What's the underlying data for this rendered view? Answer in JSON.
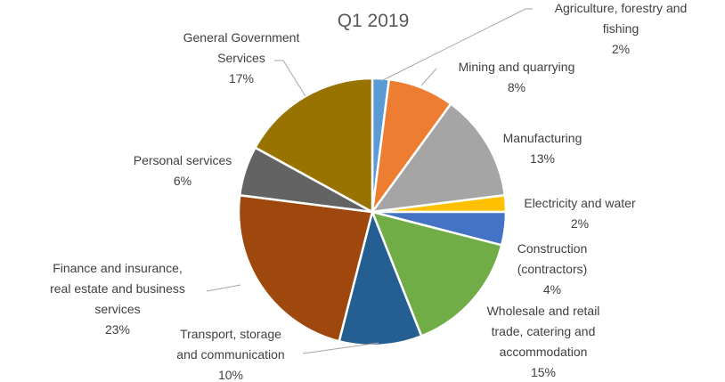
{
  "chart_data": {
    "type": "pie",
    "title": "Q1 2019",
    "colors": {
      "agriculture": "#5b9bd5",
      "mining": "#ed7d31",
      "manufacturing": "#a5a5a5",
      "electricity": "#ffc000",
      "construction": "#4472c4",
      "wholesale": "#70ad47",
      "transport": "#255e91",
      "finance": "#9e480e",
      "personal": "#636363",
      "government": "#997300"
    },
    "slices": [
      {
        "key": "agriculture",
        "lines": [
          "Agriculture, forestry and",
          "fishing"
        ],
        "value": 2,
        "value_label": "2%"
      },
      {
        "key": "mining",
        "lines": [
          "Mining and quarrying"
        ],
        "value": 8,
        "value_label": "8%"
      },
      {
        "key": "manufacturing",
        "lines": [
          "Manufacturing"
        ],
        "value": 13,
        "value_label": "13%"
      },
      {
        "key": "electricity",
        "lines": [
          "Electricity and water"
        ],
        "value": 2,
        "value_label": "2%"
      },
      {
        "key": "construction",
        "lines": [
          "Construction",
          "(contractors)"
        ],
        "value": 4,
        "value_label": "4%"
      },
      {
        "key": "wholesale",
        "lines": [
          "Wholesale and retail",
          "trade, catering and",
          "accommodation"
        ],
        "value": 15,
        "value_label": "15%"
      },
      {
        "key": "transport",
        "lines": [
          "Transport, storage",
          "and communication"
        ],
        "value": 10,
        "value_label": "10%"
      },
      {
        "key": "finance",
        "lines": [
          "Finance and insurance,",
          "real estate and business",
          "services"
        ],
        "value": 23,
        "value_label": "23%"
      },
      {
        "key": "personal",
        "lines": [
          "Personal services"
        ],
        "value": 6,
        "value_label": "6%"
      },
      {
        "key": "government",
        "lines": [
          "General Government",
          "Services"
        ],
        "value": 17,
        "value_label": "17%"
      }
    ]
  }
}
